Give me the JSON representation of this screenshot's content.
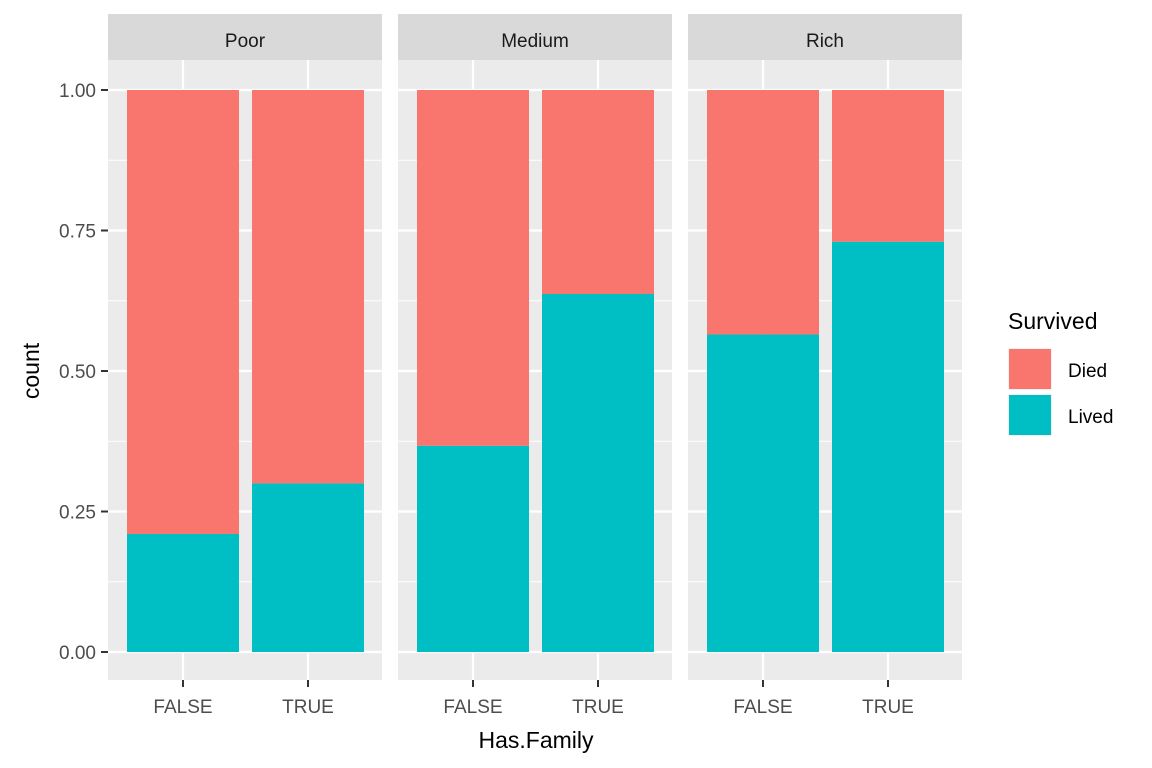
{
  "chart_data": {
    "type": "bar",
    "stacked": true,
    "position": "fill",
    "xlabel": "Has.Family",
    "ylabel": "count",
    "ylim": [
      0,
      1
    ],
    "y_ticks": [
      "0.00",
      "0.25",
      "0.50",
      "0.75",
      "1.00"
    ],
    "y_tick_values": [
      0,
      0.25,
      0.5,
      0.75,
      1
    ],
    "categories": [
      "FALSE",
      "TRUE"
    ],
    "legend": {
      "title": "Survived",
      "position": "right",
      "entries": [
        {
          "label": "Died",
          "color": "#F8766D"
        },
        {
          "label": "Lived",
          "color": "#00BFC4"
        }
      ]
    },
    "grid": true,
    "panels": [
      {
        "facet": "Poor",
        "series": [
          {
            "name": "Lived",
            "values": [
              0.21,
              0.3
            ]
          },
          {
            "name": "Died",
            "values": [
              0.79,
              0.7
            ]
          }
        ]
      },
      {
        "facet": "Medium",
        "series": [
          {
            "name": "Lived",
            "values": [
              0.367,
              0.637
            ]
          },
          {
            "name": "Died",
            "values": [
              0.633,
              0.363
            ]
          }
        ]
      },
      {
        "facet": "Rich",
        "series": [
          {
            "name": "Lived",
            "values": [
              0.565,
              0.73
            ]
          },
          {
            "name": "Died",
            "values": [
              0.435,
              0.27
            ]
          }
        ]
      }
    ]
  }
}
